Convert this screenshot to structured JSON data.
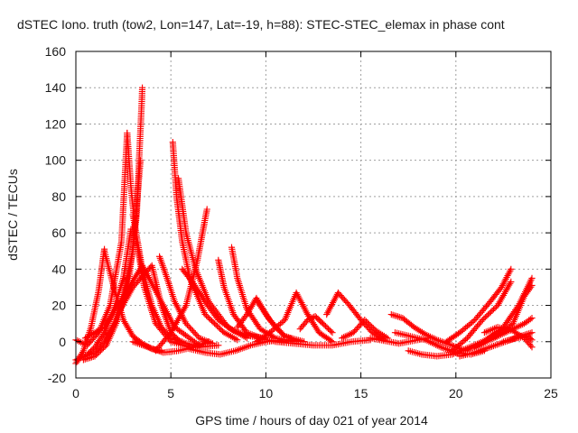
{
  "chart_data": {
    "type": "scatter",
    "title": "dSTEC Iono. truth (tow2, Lon=147, Lat=-19, h=88): STEC-STEC_elemax in phase cont",
    "xlabel": "GPS time / hours of day 021 of year 2014",
    "ylabel": "dSTEC  / TECUs",
    "xlim": [
      0,
      25
    ],
    "ylim": [
      -20,
      160
    ],
    "x_ticks": [
      "0",
      "5",
      "10",
      "15",
      "20",
      "25"
    ],
    "y_ticks": [
      "-20",
      "0",
      "20",
      "40",
      "60",
      "80",
      "100",
      "120",
      "140",
      "160"
    ],
    "grid": true,
    "marker": "plus",
    "color": "#ff0000",
    "series": [
      {
        "x": [
          0.0,
          0.4,
          0.8,
          1.2,
          1.5
        ],
        "y": [
          -12,
          -5,
          8,
          28,
          51
        ]
      },
      {
        "x": [
          0.0,
          0.5,
          1.0,
          1.5,
          2.0,
          2.5,
          2.9
        ],
        "y": [
          -10,
          -8,
          -3,
          5,
          18,
          35,
          62
        ]
      },
      {
        "x": [
          0.0,
          0.6,
          1.2,
          1.8,
          2.4,
          2.7
        ],
        "y": [
          1,
          -2,
          5,
          20,
          55,
          115
        ]
      },
      {
        "x": [
          0.5,
          1.0,
          1.5,
          2.0,
          2.5,
          3.0,
          3.4
        ],
        "y": [
          -8,
          -6,
          0,
          10,
          25,
          50,
          100
        ]
      },
      {
        "x": [
          0.4,
          1.0,
          1.6,
          2.2,
          2.8,
          3.2,
          3.5
        ],
        "y": [
          -10,
          -8,
          -2,
          12,
          35,
          70,
          140
        ]
      },
      {
        "x": [
          1.5,
          2.0,
          2.5,
          3.0,
          3.5,
          4.0,
          4.5
        ],
        "y": [
          50,
          30,
          12,
          3,
          -1,
          -4,
          -5
        ]
      },
      {
        "x": [
          2.7,
          2.9,
          3.2,
          3.6,
          4.2,
          5.0,
          6.0
        ],
        "y": [
          115,
          85,
          55,
          30,
          10,
          0,
          -3
        ]
      },
      {
        "x": [
          3.0,
          3.5,
          4.0,
          4.5,
          5.0,
          5.6
        ],
        "y": [
          70,
          40,
          20,
          8,
          2,
          0
        ]
      },
      {
        "x": [
          0.5,
          1.5,
          2.5,
          3.5,
          4.2,
          5.2,
          6.5
        ],
        "y": [
          2,
          8,
          25,
          42,
          28,
          8,
          -2
        ]
      },
      {
        "x": [
          2.2,
          3.0,
          4.0,
          4.5,
          5.0,
          5.5,
          6.5,
          7.5
        ],
        "y": [
          15,
          30,
          42,
          20,
          5,
          0,
          -3,
          -2
        ]
      },
      {
        "x": [
          4.4,
          4.8,
          5.2,
          5.8,
          6.5,
          7.2
        ],
        "y": [
          47,
          35,
          22,
          10,
          2,
          -1
        ]
      },
      {
        "x": [
          3.0,
          3.8,
          4.6,
          5.4,
          6.2,
          7.0
        ],
        "y": [
          0,
          -3,
          -6,
          -5,
          -3,
          0
        ]
      },
      {
        "x": [
          5.1,
          5.3,
          5.6,
          6.0,
          6.8,
          7.8,
          8.5
        ],
        "y": [
          110,
          80,
          55,
          35,
          15,
          5,
          1
        ]
      },
      {
        "x": [
          5.4,
          5.8,
          6.3,
          7.0,
          8.0,
          9.0
        ],
        "y": [
          90,
          60,
          40,
          22,
          8,
          2
        ]
      },
      {
        "x": [
          4.2,
          5.0,
          5.8,
          6.4,
          6.9
        ],
        "y": [
          -5,
          5,
          20,
          45,
          73
        ]
      },
      {
        "x": [
          5.6,
          6.2,
          6.8,
          7.5,
          8.3,
          9.2,
          10.0
        ],
        "y": [
          40,
          32,
          22,
          12,
          6,
          3,
          2
        ]
      },
      {
        "x": [
          7.5,
          7.8,
          8.3,
          9.0,
          10.0,
          11.0
        ],
        "y": [
          45,
          30,
          15,
          5,
          1,
          0
        ]
      },
      {
        "x": [
          8.2,
          8.5,
          9.0,
          9.7,
          10.5,
          11.5
        ],
        "y": [
          52,
          35,
          18,
          7,
          2,
          0
        ]
      },
      {
        "x": [
          6.0,
          6.8,
          7.6,
          8.4,
          9.2,
          10.0,
          11.0
        ],
        "y": [
          -4,
          -6,
          -7,
          -5,
          -2,
          0,
          1
        ]
      },
      {
        "x": [
          8.5,
          9.0,
          9.5,
          10.2,
          11.0,
          12.0
        ],
        "y": [
          8,
          15,
          24,
          12,
          3,
          0
        ]
      },
      {
        "x": [
          9.5,
          10.0,
          10.5,
          11.0,
          11.5,
          12.0
        ],
        "y": [
          23,
          15,
          8,
          3,
          1,
          0
        ]
      },
      {
        "x": [
          9.5,
          10.2,
          11.0,
          11.6,
          12.2,
          12.8,
          13.5
        ],
        "y": [
          0,
          5,
          12,
          27,
          15,
          5,
          0
        ]
      },
      {
        "x": [
          11.8,
          12.2,
          12.6,
          13.0,
          13.5
        ],
        "y": [
          7,
          12,
          14,
          10,
          5
        ]
      },
      {
        "x": [
          10.5,
          11.5,
          12.5,
          13.5,
          14.5,
          15.5
        ],
        "y": [
          0,
          -1,
          -2,
          -2,
          0,
          1
        ]
      },
      {
        "x": [
          13.2,
          13.8,
          14.4,
          15.0,
          15.6,
          16.2
        ],
        "y": [
          15,
          27,
          20,
          12,
          5,
          1
        ]
      },
      {
        "x": [
          14.0,
          14.6,
          15.2,
          15.8,
          16.4
        ],
        "y": [
          2,
          5,
          12,
          6,
          2
        ]
      },
      {
        "x": [
          15.5,
          16.0,
          16.5,
          17.0,
          17.5,
          18.0,
          18.5
        ],
        "y": [
          2,
          1,
          0,
          -1,
          0,
          1,
          2
        ]
      },
      {
        "x": [
          16.6,
          17.2,
          17.8,
          18.4,
          19.0,
          19.8,
          20.5
        ],
        "y": [
          15,
          13,
          8,
          4,
          1,
          -2,
          -5
        ]
      },
      {
        "x": [
          16.8,
          17.6,
          18.4,
          19.2,
          20.0,
          20.8,
          21.5
        ],
        "y": [
          5,
          3,
          1,
          -3,
          -6,
          -7,
          -5
        ]
      },
      {
        "x": [
          17.5,
          18.2,
          19.0,
          19.8,
          20.5,
          21.4,
          22.2
        ],
        "y": [
          -5,
          -7,
          -8,
          -7,
          -4,
          0,
          5
        ]
      },
      {
        "x": [
          19.5,
          20.2,
          21.0,
          21.8,
          22.4,
          22.9
        ],
        "y": [
          0,
          5,
          12,
          22,
          30,
          40
        ]
      },
      {
        "x": [
          19.8,
          20.6,
          21.4,
          22.2,
          22.9
        ],
        "y": [
          -5,
          2,
          12,
          20,
          33
        ]
      },
      {
        "x": [
          20.5,
          21.5,
          22.5,
          23.3,
          24.0
        ],
        "y": [
          -5,
          0,
          8,
          20,
          35
        ]
      },
      {
        "x": [
          21.0,
          22.0,
          23.0,
          23.6,
          24.0
        ],
        "y": [
          -3,
          2,
          10,
          25,
          31
        ]
      },
      {
        "x": [
          20.2,
          21.0,
          21.8,
          22.6,
          23.4,
          24.0
        ],
        "y": [
          -8,
          -6,
          -3,
          0,
          3,
          5
        ]
      },
      {
        "x": [
          21.5,
          22.2,
          23.0,
          23.6,
          24.0
        ],
        "y": [
          5,
          8,
          6,
          2,
          -3
        ]
      },
      {
        "x": [
          22.5,
          23.2,
          23.8,
          24.0
        ],
        "y": [
          0,
          2,
          3,
          1
        ]
      },
      {
        "x": [
          22.0,
          22.8,
          23.6,
          24.0
        ],
        "y": [
          2,
          6,
          10,
          13
        ]
      }
    ]
  }
}
